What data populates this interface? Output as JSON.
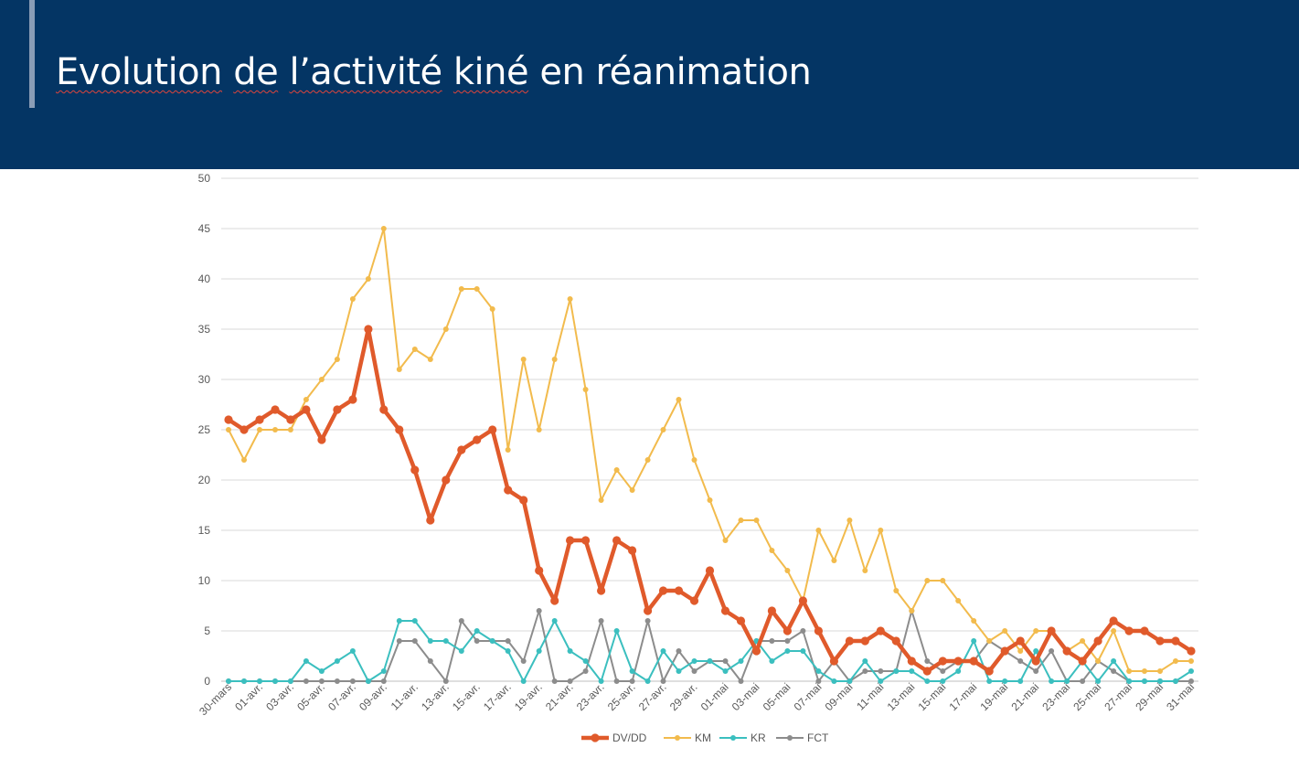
{
  "slide": {
    "title_words": [
      "Evolution",
      "de",
      "l’activité",
      "kiné",
      "en",
      "réanimation"
    ]
  },
  "colors": {
    "header_background": "#043564",
    "header_accent": "#8a9db6",
    "title_text": "#ffffff",
    "spellcheck_underline": "#e0443a",
    "gridline": "#d9d9d9",
    "axis_text": "#595959"
  },
  "chart_data": {
    "type": "line",
    "title": "",
    "xlabel": "",
    "ylabel": "",
    "ylim": [
      0,
      50
    ],
    "y_ticks": [
      0,
      5,
      10,
      15,
      20,
      25,
      30,
      35,
      40,
      45,
      50
    ],
    "grid": true,
    "legend_position": "bottom",
    "x": [
      "30-mars",
      "31-mars",
      "01-avr.",
      "02-avr.",
      "03-avr.",
      "04-avr.",
      "05-avr.",
      "06-avr.",
      "07-avr.",
      "08-avr.",
      "09-avr.",
      "10-avr.",
      "11-avr.",
      "12-avr.",
      "13-avr.",
      "14-avr.",
      "15-avr.",
      "16-avr.",
      "17-avr.",
      "18-avr.",
      "19-avr.",
      "20-avr.",
      "21-avr.",
      "22-avr.",
      "23-avr.",
      "24-avr.",
      "25-avr.",
      "26-avr.",
      "27-avr.",
      "28-avr.",
      "29-avr.",
      "30-avr.",
      "01-mai",
      "02-mai",
      "03-mai",
      "04-mai",
      "05-mai",
      "06-mai",
      "07-mai",
      "08-mai",
      "09-mai",
      "10-mai",
      "11-mai",
      "12-mai",
      "13-mai",
      "14-mai",
      "15-mai",
      "16-mai",
      "17-mai",
      "18-mai",
      "19-mai",
      "20-mai",
      "21-mai",
      "22-mai",
      "23-mai",
      "24-mai",
      "25-mai",
      "26-mai",
      "27-mai",
      "28-mai",
      "29-mai",
      "30-mai",
      "31-mai"
    ],
    "x_tick_labels": [
      "30-mars",
      "01-avr.",
      "03-avr.",
      "05-avr.",
      "07-avr.",
      "09-avr.",
      "11-avr.",
      "13-avr.",
      "15-avr.",
      "17-avr.",
      "19-avr.",
      "21-avr.",
      "23-avr.",
      "25-avr.",
      "27-avr.",
      "29-avr.",
      "01-mai",
      "03-mai",
      "05-mai",
      "07-mai",
      "09-mai",
      "11-mai",
      "13-mai",
      "15-mai",
      "17-mai",
      "19-mai",
      "21-mai",
      "23-mai",
      "25-mai",
      "27-mai",
      "29-mai",
      "31-mai"
    ],
    "series": [
      {
        "name": "DV/DD",
        "color": "#e05a2b",
        "emphasis": "thick",
        "values": [
          26,
          25,
          26,
          27,
          26,
          27,
          24,
          27,
          28,
          35,
          27,
          25,
          21,
          16,
          20,
          23,
          24,
          25,
          19,
          18,
          11,
          8,
          14,
          14,
          9,
          14,
          13,
          7,
          9,
          9,
          8,
          11,
          7,
          6,
          3,
          7,
          5,
          8,
          5,
          2,
          4,
          4,
          5,
          4,
          2,
          1,
          2,
          2,
          2,
          1,
          3,
          4,
          2,
          5,
          3,
          2,
          4,
          6,
          5,
          5,
          4,
          4,
          3
        ]
      },
      {
        "name": "KM",
        "color": "#f2bb4d",
        "emphasis": "normal",
        "values": [
          25,
          22,
          25,
          25,
          25,
          28,
          30,
          32,
          38,
          40,
          45,
          31,
          33,
          32,
          35,
          39,
          39,
          37,
          23,
          32,
          25,
          32,
          38,
          29,
          18,
          21,
          19,
          22,
          25,
          28,
          22,
          18,
          14,
          16,
          16,
          13,
          11,
          8,
          15,
          12,
          16,
          11,
          15,
          9,
          7,
          10,
          10,
          8,
          6,
          4,
          5,
          3,
          5,
          5,
          3,
          4,
          2,
          5,
          1,
          1,
          1,
          2,
          2
        ]
      },
      {
        "name": "KR",
        "color": "#3bbfbf",
        "emphasis": "normal",
        "values": [
          0,
          0,
          0,
          0,
          0,
          2,
          1,
          2,
          3,
          0,
          1,
          6,
          6,
          4,
          4,
          3,
          5,
          4,
          3,
          0,
          3,
          6,
          3,
          2,
          0,
          5,
          1,
          0,
          3,
          1,
          2,
          2,
          1,
          2,
          4,
          2,
          3,
          3,
          1,
          0,
          0,
          2,
          0,
          1,
          1,
          0,
          0,
          1,
          4,
          0,
          0,
          0,
          3,
          0,
          0,
          2,
          0,
          2,
          0,
          0,
          0,
          0,
          1
        ]
      },
      {
        "name": "FCT",
        "color": "#8c8c8c",
        "emphasis": "normal",
        "values": [
          0,
          0,
          0,
          0,
          0,
          0,
          0,
          0,
          0,
          0,
          0,
          4,
          4,
          2,
          0,
          6,
          4,
          4,
          4,
          2,
          7,
          0,
          0,
          1,
          6,
          0,
          0,
          6,
          0,
          3,
          1,
          2,
          2,
          0,
          4,
          4,
          4,
          5,
          0,
          2,
          0,
          1,
          1,
          1,
          7,
          2,
          1,
          2,
          2,
          4,
          3,
          2,
          1,
          3,
          0,
          0,
          2,
          1,
          0,
          0,
          0,
          0,
          0
        ]
      }
    ]
  }
}
